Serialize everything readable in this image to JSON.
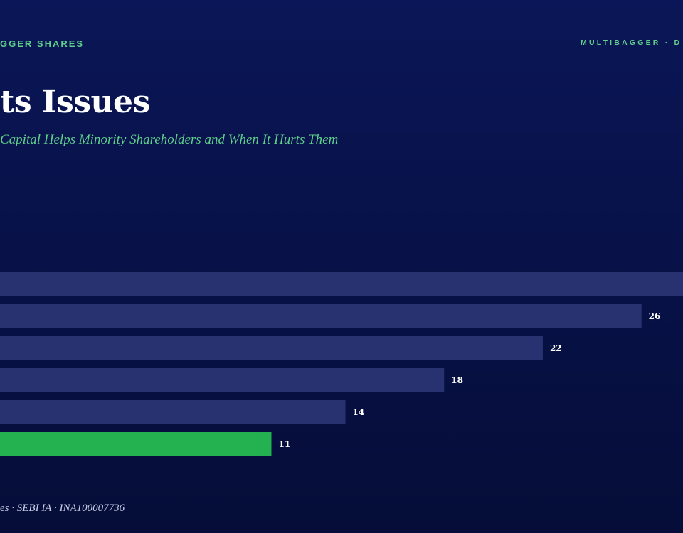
{
  "header": {
    "left_label": "GGER SHARES",
    "right_label": "MULTIBAGGER · D"
  },
  "title": "ts Issues",
  "subtitle": "Capital Helps Minority Shareholders and When It Hurts Them",
  "footer": "es · SEBI IA · INA100007736",
  "colors": {
    "bar": "#283270",
    "highlight_bar": "#23b24f",
    "label": "#ffffff",
    "accent": "#5fcf8a"
  },
  "chart_data": {
    "type": "bar",
    "orientation": "horizontal",
    "series": [
      {
        "values": [
          30,
          26,
          22,
          18,
          14,
          11
        ],
        "labels": [
          "",
          "26",
          "22",
          "18",
          "14",
          "11"
        ],
        "highlight_index": 5
      }
    ],
    "xlim": [
      0,
      29.7
    ],
    "grid": false,
    "legend": "none"
  }
}
